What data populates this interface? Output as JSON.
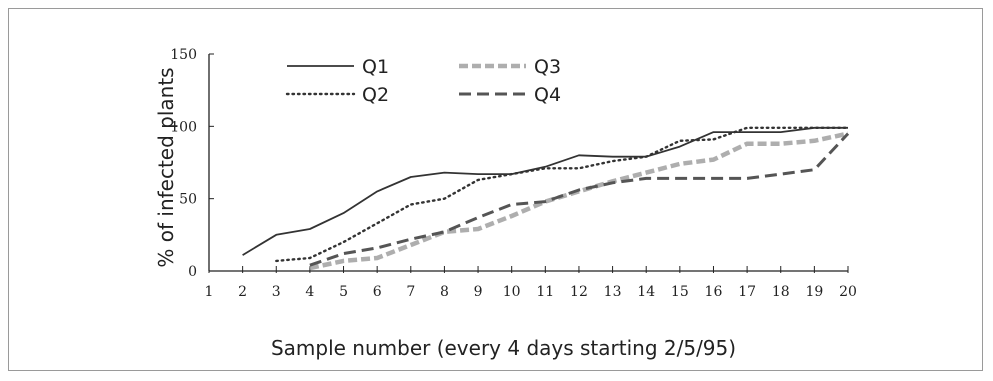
{
  "chart_data": {
    "type": "line",
    "xlabel": "Sample number (every 4 days starting 2/5/95)",
    "ylabel": "% of infected plants",
    "xlim": [
      1,
      20
    ],
    "ylim": [
      0,
      150
    ],
    "x_ticks": [
      "1",
      "2",
      "3",
      "4",
      "5",
      "6",
      "7",
      "8",
      "9",
      "10",
      "11",
      "12",
      "13",
      "14",
      "15",
      "16",
      "17",
      "18",
      "19",
      "20"
    ],
    "y_ticks": [
      "0",
      "50",
      "100",
      "150"
    ],
    "grid": false,
    "legend_position": "top-center",
    "series": [
      {
        "name": "Q1",
        "style": "solid",
        "color": "#333333",
        "x": [
          2,
          3,
          4,
          5,
          6,
          7,
          8,
          9,
          10,
          11,
          12,
          13,
          14,
          15,
          16,
          17,
          18,
          19,
          20
        ],
        "y": [
          11,
          25,
          29,
          40,
          55,
          65,
          68,
          67,
          67,
          72,
          80,
          79,
          79,
          86,
          96,
          96,
          96,
          99,
          99
        ]
      },
      {
        "name": "Q2",
        "style": "dotted",
        "color": "#333333",
        "x": [
          3,
          4,
          5,
          6,
          7,
          8,
          9,
          10,
          11,
          12,
          13,
          14,
          15,
          16,
          17,
          18,
          19,
          20
        ],
        "y": [
          7,
          9,
          20,
          33,
          46,
          50,
          63,
          67,
          71,
          71,
          76,
          79,
          90,
          91,
          99,
          99,
          99,
          99
        ]
      },
      {
        "name": "Q3",
        "style": "hatched",
        "color": "#9a9a9a",
        "x": [
          4,
          5,
          6,
          7,
          8,
          9,
          10,
          11,
          12,
          13,
          14,
          15,
          16,
          17,
          18,
          19,
          20
        ],
        "y": [
          2,
          7,
          9,
          18,
          27,
          29,
          38,
          48,
          55,
          62,
          68,
          74,
          77,
          88,
          88,
          90,
          95
        ]
      },
      {
        "name": "Q4",
        "style": "dashed",
        "color": "#555555",
        "x": [
          4,
          5,
          6,
          7,
          8,
          9,
          10,
          11,
          12,
          13,
          14,
          15,
          16,
          17,
          18,
          19,
          20
        ],
        "y": [
          4,
          12,
          16,
          22,
          27,
          37,
          46,
          48,
          56,
          61,
          64,
          64,
          64,
          64,
          67,
          70,
          95
        ]
      }
    ]
  }
}
